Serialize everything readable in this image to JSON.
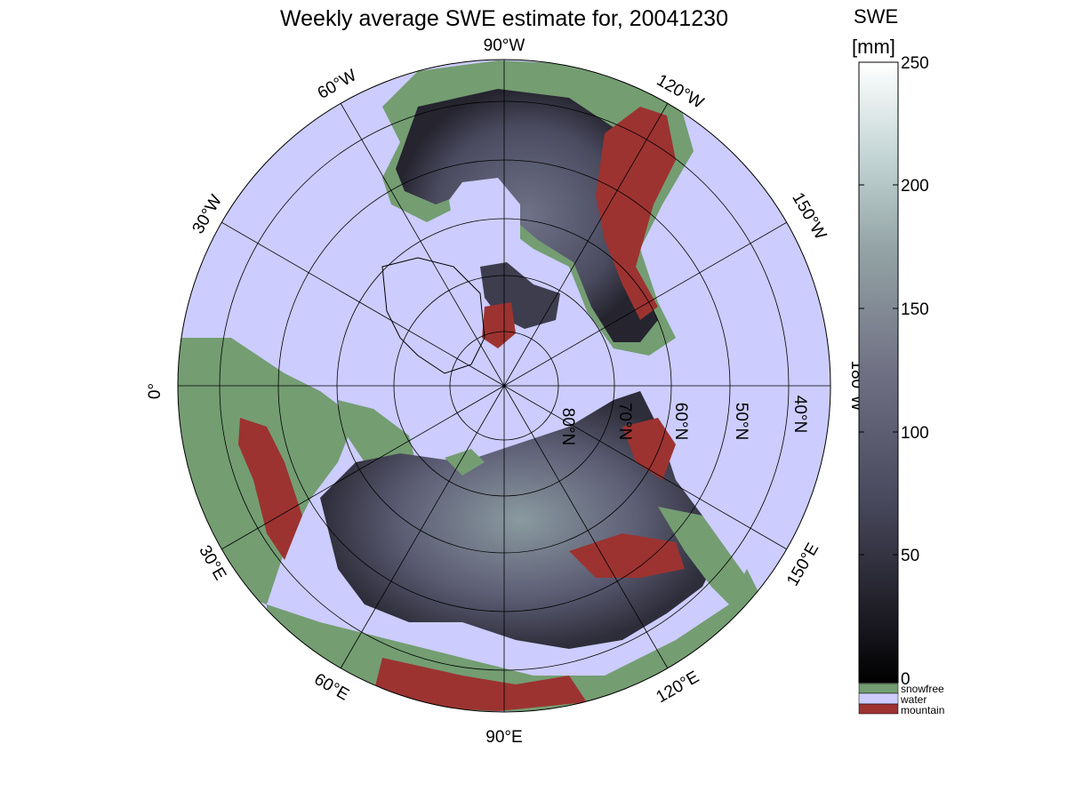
{
  "title": "Weekly average SWE estimate for, 20041230",
  "colorbar": {
    "label_line1": "SWE",
    "label_line2": "[mm]",
    "ticks": [
      "250",
      "200",
      "150",
      "100",
      "50",
      "0"
    ],
    "categories": [
      {
        "label": "snowfree",
        "color": "#749d72"
      },
      {
        "label": "water",
        "color": "#ccccff"
      },
      {
        "label": "mountain",
        "color": "#9c3331"
      }
    ]
  },
  "map": {
    "longitude_labels": {
      "deg90W": "90°W",
      "deg60W": "60°W",
      "deg120W": "120°W",
      "deg30W": "30°W",
      "deg150W": "150°W",
      "deg0": "0°",
      "deg180W": "180°W",
      "deg30E": "30°E",
      "deg150E": "150°E",
      "deg60E": "60°E",
      "deg120E": "120°E",
      "deg90E": "90°E"
    },
    "latitude_labels": {
      "n80": "80°N",
      "n70": "70°N",
      "n60": "60°N",
      "n50": "50°N",
      "n40": "40°N"
    },
    "colors": {
      "water": "#ccccff",
      "snowfree": "#749d72",
      "mountain": "#9c3331",
      "swe_low": "#17161d",
      "swe_mid": "#5a5a72",
      "swe_high": "#8ea3a3"
    }
  }
}
